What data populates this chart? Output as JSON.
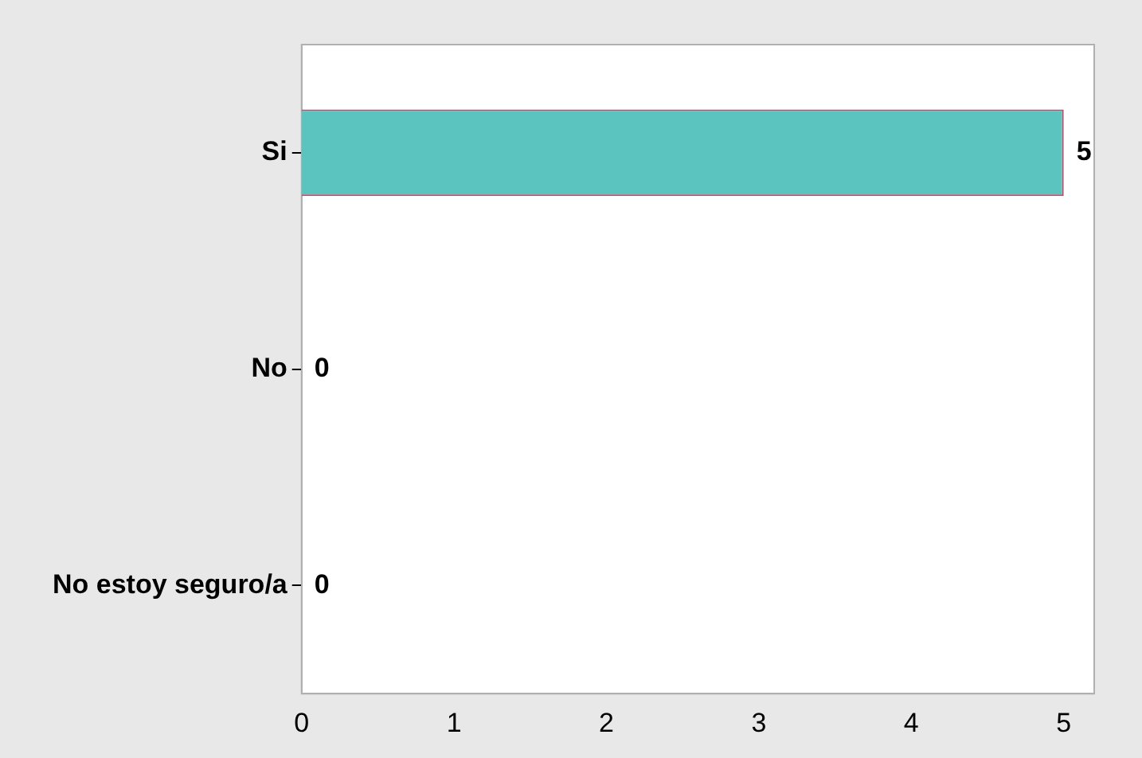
{
  "chart_data": {
    "type": "bar",
    "orientation": "horizontal",
    "categories": [
      "Si",
      "No",
      "No estoy seguro/a"
    ],
    "values": [
      5,
      0,
      0
    ],
    "color": "#5cc4be",
    "xlim": [
      0,
      5.2
    ],
    "xticks": [
      0,
      1,
      2,
      3,
      4,
      5
    ],
    "data_labels": true,
    "grid": false,
    "legend": false
  }
}
